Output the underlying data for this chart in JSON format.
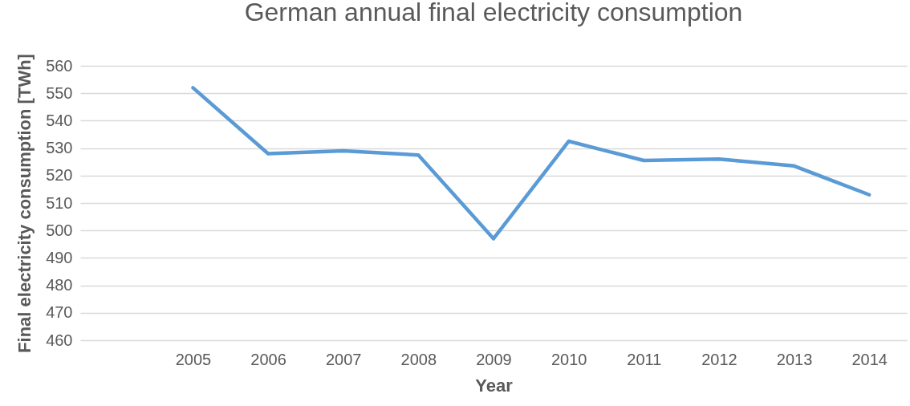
{
  "chart_data": {
    "type": "line",
    "title": "German annual final electricity consumption",
    "xlabel": "Year",
    "ylabel": "Final electricity consumption [TWh]",
    "categories": [
      null,
      "2005",
      "2006",
      "2007",
      "2008",
      "2009",
      "2010",
      "2011",
      "2012",
      "2013",
      "2014"
    ],
    "series": [
      {
        "color": "#5b9bd5",
        "values": [
          null,
          552,
          528,
          529,
          527.5,
          497,
          532.5,
          525.5,
          526,
          523.5,
          513
        ]
      }
    ],
    "ylim": [
      460,
      560
    ],
    "yticks": [
      460,
      470,
      480,
      490,
      500,
      510,
      520,
      530,
      540,
      550,
      560
    ],
    "grid": "y",
    "marker": "none",
    "line_style": "solid"
  }
}
